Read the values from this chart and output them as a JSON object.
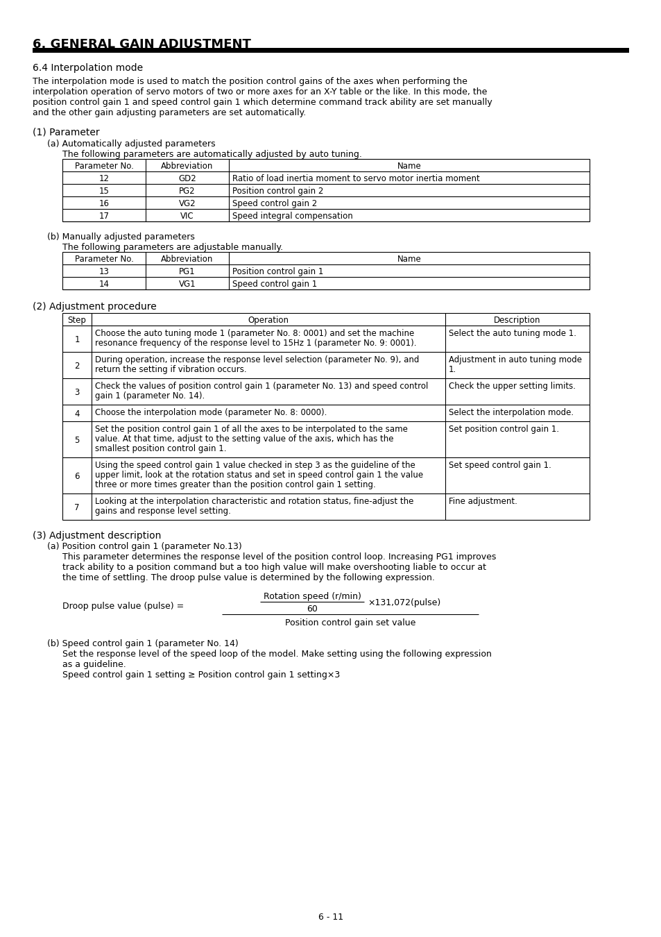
{
  "title": "6. GENERAL GAIN ADJUSTMENT",
  "bg_color": "#ffffff",
  "page_number": "6 - 11",
  "section_64": "6.4 Interpolation mode",
  "intro_lines": [
    "The interpolation mode is used to match the position control gains of the axes when performing the",
    "interpolation operation of servo motors of two or more axes for an X-Y table or the like. In this mode, the",
    "position control gain 1 and speed control gain 1 which determine command track ability are set manually",
    "and the other gain adjusting parameters are set automatically."
  ],
  "param_section": "(1) Parameter",
  "auto_header": "(a) Automatically adjusted parameters",
  "auto_subtext": "The following parameters are automatically adjusted by auto tuning.",
  "table_headers": [
    "Parameter No.",
    "Abbreviation",
    "Name"
  ],
  "auto_rows": [
    [
      "12",
      "GD2",
      "Ratio of load inertia moment to servo motor inertia moment"
    ],
    [
      "15",
      "PG2",
      "Position control gain 2"
    ],
    [
      "16",
      "VG2",
      "Speed control gain 2"
    ],
    [
      "17",
      "VIC",
      "Speed integral compensation"
    ]
  ],
  "manual_header": "(b) Manually adjusted parameters",
  "manual_subtext": "The following parameters are adjustable manually.",
  "manual_rows": [
    [
      "13",
      "PG1",
      "Position control gain 1"
    ],
    [
      "14",
      "VG1",
      "Speed control gain 1"
    ]
  ],
  "adj_section": "(2) Adjustment procedure",
  "adj_headers": [
    "Step",
    "Operation",
    "Description"
  ],
  "adj_rows": [
    [
      "1",
      "Choose the auto tuning mode 1 (parameter No. 8: 0001) and set the machine\nresonance frequency of the response level to 15Hz 1 (parameter No. 9: 0001).",
      "Select the auto tuning mode 1."
    ],
    [
      "2",
      "During operation, increase the response level selection (parameter No. 9), and\nreturn the setting if vibration occurs.",
      "Adjustment in auto tuning mode\n1."
    ],
    [
      "3",
      "Check the values of position control gain 1 (parameter No. 13) and speed control\ngain 1 (parameter No. 14).",
      "Check the upper setting limits."
    ],
    [
      "4",
      "Choose the interpolation mode (parameter No. 8: 0000).",
      "Select the interpolation mode."
    ],
    [
      "5",
      "Set the position control gain 1 of all the axes to be interpolated to the same\nvalue. At that time, adjust to the setting value of the axis, which has the\nsmallest position control gain 1.",
      "Set position control gain 1."
    ],
    [
      "6",
      "Using the speed control gain 1 value checked in step 3 as the guideline of the\nupper limit, look at the rotation status and set in speed control gain 1 the value\nthree or more times greater than the position control gain 1 setting.",
      "Set speed control gain 1."
    ],
    [
      "7",
      "Looking at the interpolation characteristic and rotation status, fine-adjust the\ngains and response level setting.",
      "Fine adjustment."
    ]
  ],
  "section3": "(3) Adjustment description",
  "sec3a": "(a) Position control gain 1 (parameter No.13)",
  "sec3a_lines": [
    "This parameter determines the response level of the position control loop. Increasing PG1 improves",
    "track ability to a position command but a too high value will make overshooting liable to occur at",
    "the time of settling. The droop pulse value is determined by the following expression."
  ],
  "formula_lhs": "Droop pulse value (pulse) =",
  "formula_num_top": "Rotation speed (r/min)",
  "formula_num_bot": "60",
  "formula_times": "×131,072(pulse)",
  "formula_denom": "Position control gain set value",
  "sec3b": "(b) Speed control gain 1 (parameter No. 14)",
  "sec3b_lines": [
    "Set the response level of the speed loop of the model. Make setting using the following expression",
    "as a guideline."
  ],
  "sec3b_expr": "Speed control gain 1 setting ≥ Position control gain 1 setting×3"
}
